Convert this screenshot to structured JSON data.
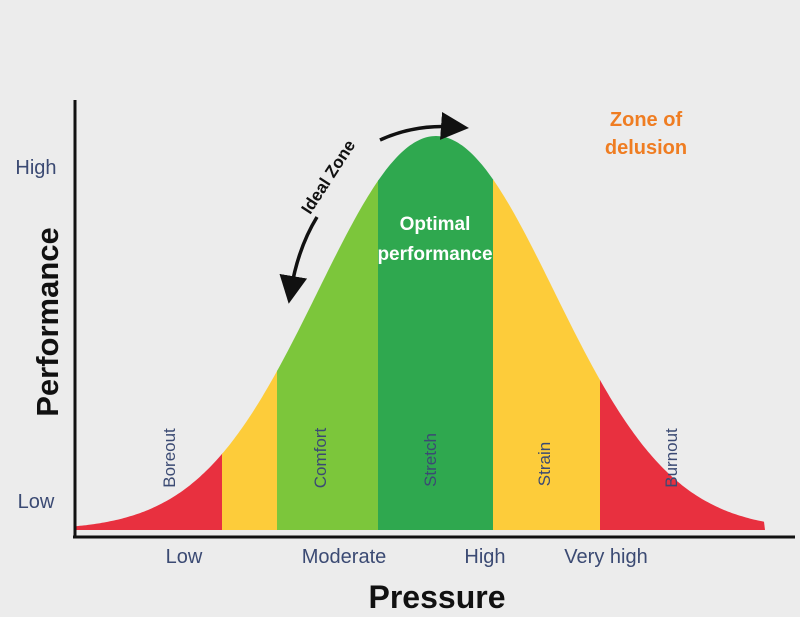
{
  "y_axis": {
    "title": "Performance",
    "ticks": [
      "High",
      "Low"
    ]
  },
  "x_axis": {
    "title": "Pressure",
    "ticks": [
      "Low",
      "Moderate",
      "High",
      "Very high"
    ]
  },
  "zones": [
    {
      "label": "Boreout",
      "color": "#e8303f"
    },
    {
      "label": "",
      "color": "#fdcc3a"
    },
    {
      "label": "Comfort",
      "color": "#7cc63b"
    },
    {
      "label": "Stretch",
      "color": "#2fa84f"
    },
    {
      "label": "Strain",
      "color": "#fdcc3a"
    },
    {
      "label": "Burnout",
      "color": "#e8303f"
    }
  ],
  "annotations": {
    "optimal_line1": "Optimal",
    "optimal_line2": "performance",
    "ideal_zone": "Ideal Zone",
    "delusion_line1": "Zone  of",
    "delusion_line2": "delusion"
  },
  "colors": {
    "red": "#e8303f",
    "yellow": "#fdcc3a",
    "light_green": "#7cc63b",
    "dark_green": "#2fa84f",
    "orange": "#ef7d22",
    "label_blue": "#3b4a73",
    "background": "#ececec"
  }
}
